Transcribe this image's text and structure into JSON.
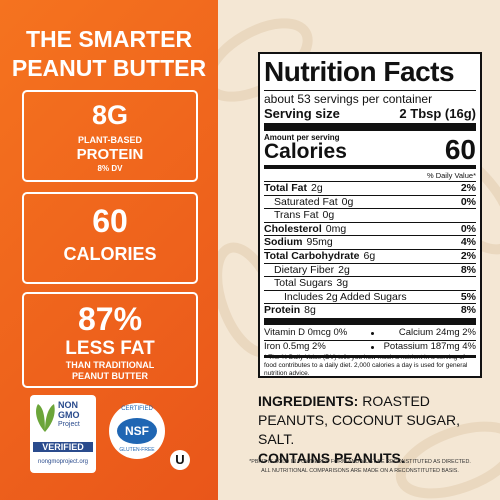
{
  "headline": {
    "line1": "THE SMARTER",
    "line2": "PEANUT BUTTER"
  },
  "badges": [
    {
      "big": "8G",
      "lines": [
        "PLANT-BASED",
        "PROTEIN",
        "8% DV"
      ]
    },
    {
      "big": "60",
      "lines": [
        "CALORIES"
      ]
    },
    {
      "big": "87%",
      "lines": [
        "LESS FAT",
        "THAN TRADITIONAL",
        "PEANUT BUTTER"
      ]
    }
  ],
  "logos": {
    "nongmo": [
      "NON",
      "GMO",
      "Project",
      "VERIFIED",
      "nongmoproject.org"
    ],
    "nsf": [
      "CERTIFIED",
      "NSF",
      "GLUTEN-FREE"
    ],
    "kosher": "U"
  },
  "nutrition": {
    "title": "Nutrition Facts",
    "servings": "about 53 servings per container",
    "serving_label": "Serving size",
    "serving_value": "2 Tbsp (16g)",
    "amount_label": "Amount per serving",
    "calories_label": "Calories",
    "calories_value": "60",
    "dv_header": "% Daily Value*",
    "rows": [
      {
        "label": "Total Fat",
        "amount": "2g",
        "dv": "2%",
        "bold": true
      },
      {
        "label": "Saturated Fat",
        "amount": "0g",
        "dv": "0%",
        "indent": 1
      },
      {
        "label": "Trans Fat",
        "amount": "0g",
        "indent": 1
      },
      {
        "label": "Cholesterol",
        "amount": "0mg",
        "dv": "0%",
        "bold": true
      },
      {
        "label": "Sodium",
        "amount": "95mg",
        "dv": "4%",
        "bold": true
      },
      {
        "label": "Total Carbohydrate",
        "amount": "6g",
        "dv": "2%",
        "bold": true
      },
      {
        "label": "Dietary Fiber",
        "amount": "2g",
        "dv": "8%",
        "indent": 1
      },
      {
        "label": "Total Sugars",
        "amount": "3g",
        "indent": 1
      },
      {
        "label": "Includes 2g Added Sugars",
        "dv": "5%",
        "indent": 2
      },
      {
        "label": "Protein",
        "amount": "8g",
        "dv": "8%",
        "bold": true
      }
    ],
    "vitamins": [
      [
        "Vitamin D 0mcg 0%",
        "Calcium 24mg 2%"
      ],
      [
        "Iron 0.5mg 2%",
        "Potassium 187mg 4%"
      ]
    ],
    "footnote": "* The % Daily Value (DV) tells you how much a nutrient in a serving of food contributes to a daily diet. 2,000 calories a day is used for general nutrition advice."
  },
  "ingredients": {
    "label": "INGREDIENTS:",
    "text": "ROASTED PEANUTS, COCONUT SUGAR, SALT.",
    "allergen": "CONTAINS PEANUTS."
  },
  "disclaimer": [
    "*PBFIT IS SOLD IN POWDERED FORM AND MUST BE RECONSTITUTED AS DIRECTED.",
    "ALL NUTRITIONAL COMPARISONS ARE MADE ON A RECONSTITUTED BASIS."
  ]
}
